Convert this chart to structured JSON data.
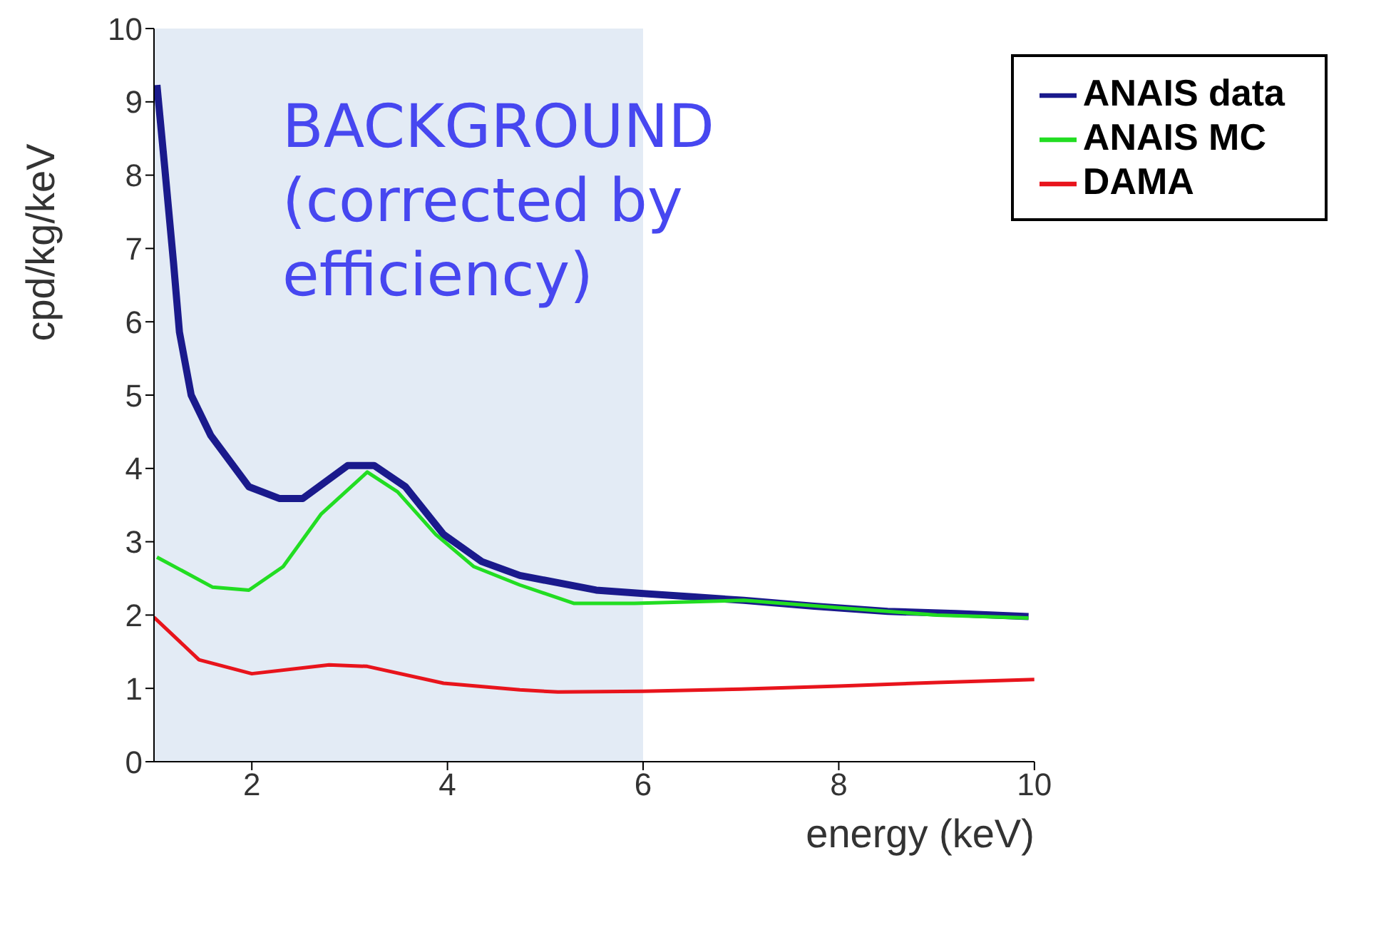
{
  "chart_data": {
    "type": "line",
    "xlabel": "energy (keV)",
    "ylabel": "cpd/kg/keV",
    "xlim": [
      1,
      10
    ],
    "xticks": [
      2,
      4,
      6,
      8,
      10
    ],
    "ylim": [
      0,
      10
    ],
    "yticks": [
      0,
      1,
      2,
      3,
      4,
      5,
      6,
      7,
      8,
      9,
      10
    ],
    "grid": false,
    "legend": "top right",
    "marker": "none",
    "line_style": "solid",
    "annotations": [
      "BACKGROUND\n(corrected by\nefficiency)"
    ],
    "bands": [
      {
        "axis": "x",
        "from": 1,
        "to": 6,
        "color": "#e3ebf5"
      }
    ],
    "series": [
      {
        "name": "ANAIS data",
        "color": "#1a1a8c",
        "x": [
          1.03,
          1.11,
          1.2,
          1.26,
          1.38,
          1.58,
          1.97,
          2.28,
          2.52,
          2.98,
          3.25,
          3.57,
          3.96,
          4.35,
          4.74,
          5.52,
          6.03,
          6.5,
          7.03,
          7.75,
          8.5,
          9.2,
          9.94
        ],
        "values": [
          9.23,
          8.1,
          6.8,
          5.86,
          5.0,
          4.45,
          3.75,
          3.59,
          3.59,
          4.04,
          4.04,
          3.75,
          3.1,
          2.73,
          2.54,
          2.34,
          2.29,
          2.25,
          2.2,
          2.12,
          2.05,
          2.02,
          1.98
        ]
      },
      {
        "name": "ANAIS MC",
        "color": "#22dd22",
        "x": [
          1.03,
          1.6,
          1.97,
          2.32,
          2.71,
          3.18,
          3.49,
          3.88,
          4.27,
          4.74,
          5.29,
          5.91,
          7.03,
          8.0,
          9.0,
          9.94
        ],
        "values": [
          2.79,
          2.38,
          2.34,
          2.66,
          3.38,
          3.95,
          3.68,
          3.1,
          2.66,
          2.41,
          2.16,
          2.16,
          2.2,
          2.1,
          2.0,
          1.96
        ]
      },
      {
        "name": "DAMA",
        "color": "#e8141c",
        "x": [
          1.0,
          1.46,
          2.0,
          2.79,
          3.18,
          3.96,
          4.74,
          5.13,
          6.0,
          7.0,
          8.0,
          9.0,
          10.0
        ],
        "values": [
          1.97,
          1.39,
          1.2,
          1.32,
          1.3,
          1.07,
          0.98,
          0.95,
          0.96,
          0.99,
          1.03,
          1.08,
          1.12
        ]
      }
    ]
  }
}
